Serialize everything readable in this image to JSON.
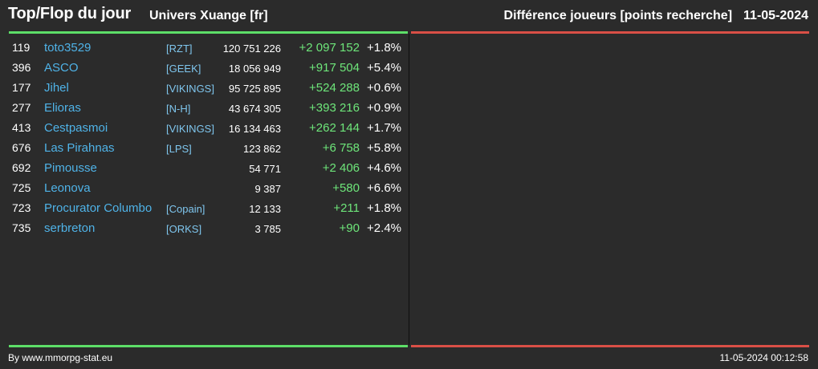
{
  "header": {
    "title": "Top/Flop du jour",
    "universe": "Univers Xuange [fr]",
    "metric": "Différence joueurs [points recherche]",
    "date": "11-05-2024"
  },
  "top_list": [
    {
      "rank": "119",
      "name": "toto3529",
      "alliance": "[RZT]",
      "points": "120 751 226",
      "diff": "+2 097 152",
      "pct": "+1.8%"
    },
    {
      "rank": "396",
      "name": "ASCO",
      "alliance": "[GEEK]",
      "points": "18 056 949",
      "diff": "+917 504",
      "pct": "+5.4%"
    },
    {
      "rank": "177",
      "name": "Jihel",
      "alliance": "[VIKINGS]",
      "points": "95 725 895",
      "diff": "+524 288",
      "pct": "+0.6%"
    },
    {
      "rank": "277",
      "name": "Elioras",
      "alliance": "[N-H]",
      "points": "43 674 305",
      "diff": "+393 216",
      "pct": "+0.9%"
    },
    {
      "rank": "413",
      "name": "Cestpasmoi",
      "alliance": "[VIKINGS]",
      "points": "16 134 463",
      "diff": "+262 144",
      "pct": "+1.7%"
    },
    {
      "rank": "676",
      "name": "Las Pirahnas",
      "alliance": "[LPS]",
      "points": "123 862",
      "diff": "+6 758",
      "pct": "+5.8%"
    },
    {
      "rank": "692",
      "name": "Pimousse",
      "alliance": "",
      "points": "54 771",
      "diff": "+2 406",
      "pct": "+4.6%"
    },
    {
      "rank": "725",
      "name": "Leonova",
      "alliance": "",
      "points": "9 387",
      "diff": "+580",
      "pct": "+6.6%"
    },
    {
      "rank": "723",
      "name": "Procurator Columbo",
      "alliance": "[Copain]",
      "points": "12 133",
      "diff": "+211",
      "pct": "+1.8%"
    },
    {
      "rank": "735",
      "name": "serbreton",
      "alliance": "[ORKS]",
      "points": "3 785",
      "diff": "+90",
      "pct": "+2.4%"
    }
  ],
  "flop_list": [],
  "footer": {
    "credit": "By www.mmorpg-stat.eu",
    "timestamp": "11-05-2024 00:12:58"
  },
  "colors": {
    "background": "#2b2b2b",
    "top_accent": "#5dde68",
    "flop_accent": "#d94f46",
    "player_link": "#4fb3e8",
    "alliance_link": "#7fc6ee",
    "gain": "#6ee67a"
  }
}
